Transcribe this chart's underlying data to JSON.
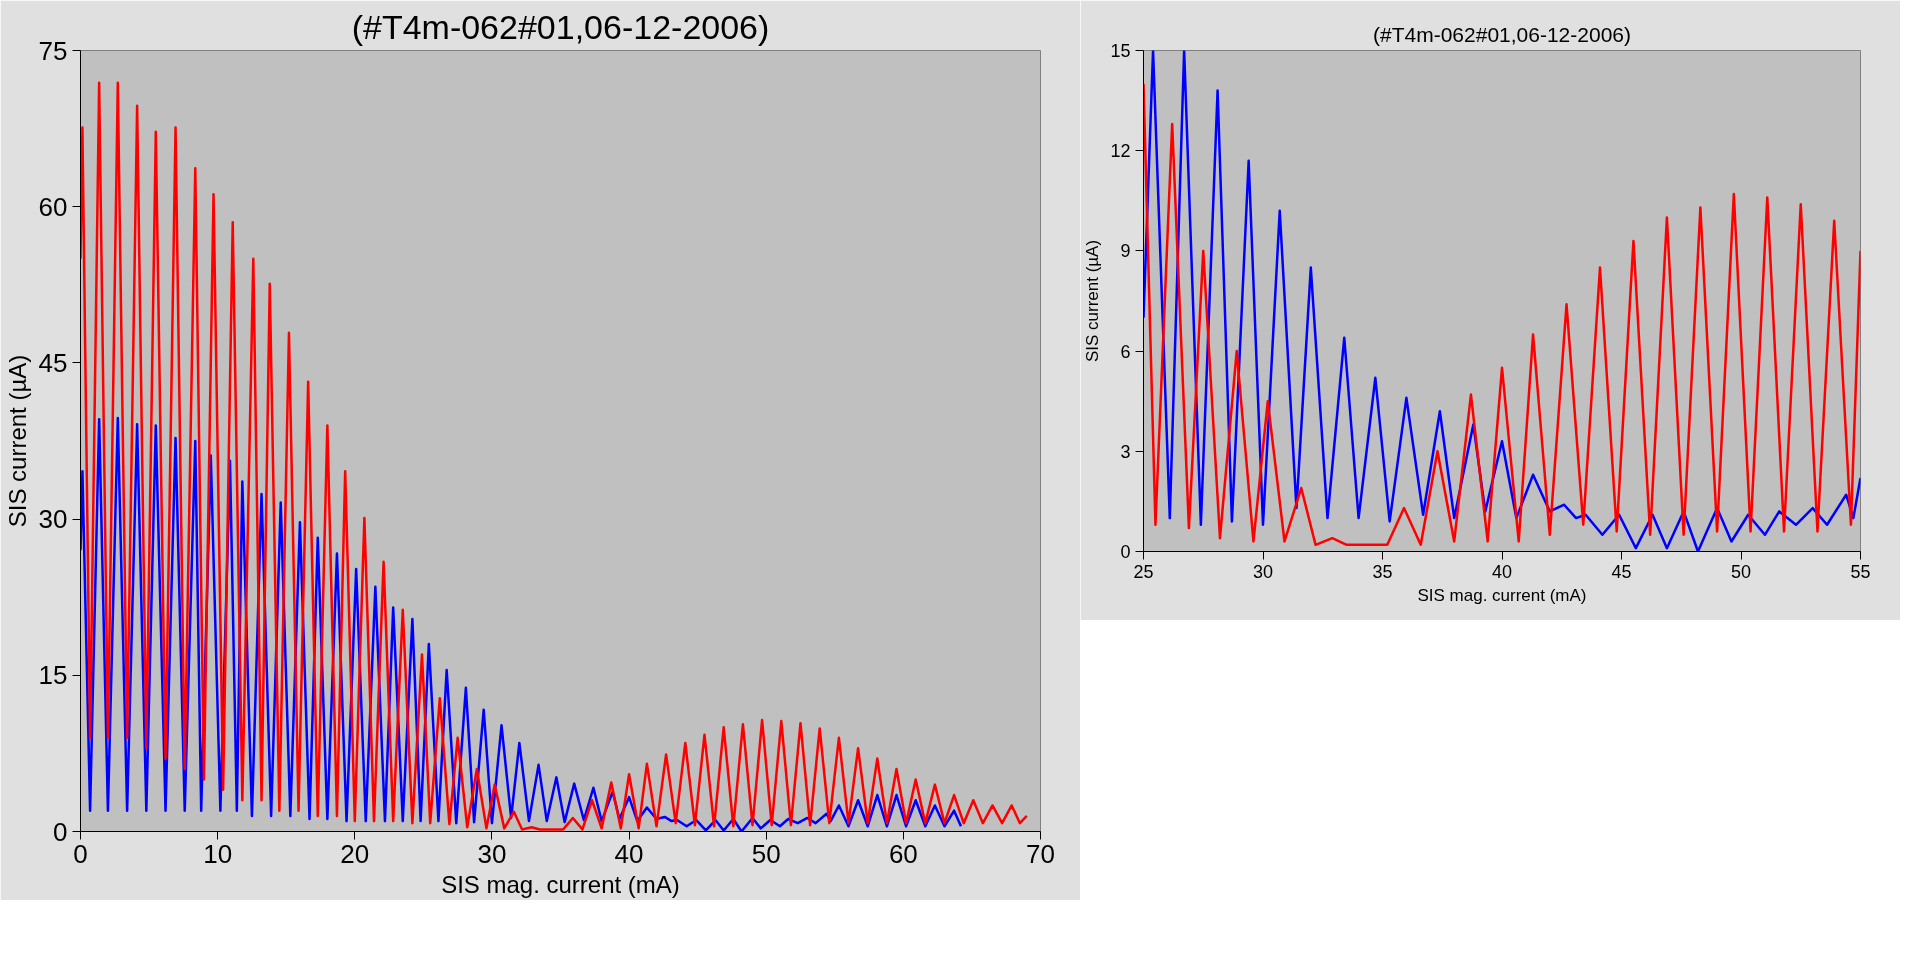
{
  "chart_data": [
    {
      "type": "line",
      "title": "(#T4m-062#01,06-12-2006)",
      "xlabel": "SIS mag. current (mA)",
      "ylabel": "SIS current (µA)",
      "xlim": [
        0,
        70
      ],
      "ylim": [
        0,
        75
      ],
      "xticks": [
        0,
        10,
        20,
        30,
        40,
        50,
        60,
        70
      ],
      "yticks": [
        0,
        15,
        30,
        45,
        60,
        75
      ],
      "grid": false,
      "marker": "none",
      "line_style": "solid",
      "series": [
        {
          "color": "#0000ff",
          "x": [
            0,
            0.14,
            0.7,
            1.36,
            2.0,
            2.72,
            3.4,
            4.13,
            4.8,
            5.49,
            6.2,
            6.93,
            7.6,
            8.37,
            8.8,
            9.5,
            10.2,
            10.9,
            11.4,
            11.8,
            12.5,
            13.2,
            13.9,
            14.6,
            15.3,
            16.0,
            16.7,
            17.3,
            18.0,
            18.7,
            19.4,
            20.1,
            20.8,
            21.5,
            22.2,
            22.8,
            23.5,
            24.2,
            24.8,
            25.4,
            26.1,
            26.7,
            27.4,
            28.1,
            28.7,
            29.4,
            30.0,
            30.7,
            31.4,
            32.0,
            32.7,
            33.4,
            34.0,
            34.7,
            35.3,
            36.0,
            36.7,
            37.4,
            38.0,
            38.8,
            39.3,
            40.0,
            40.6,
            41.3,
            42.0,
            42.6,
            43.1,
            43.5,
            44.2,
            44.9,
            45.6,
            46.3,
            46.9,
            47.6,
            48.2,
            49.0,
            49.6,
            50.3,
            51.0,
            51.6,
            52.3,
            53.0,
            53.6,
            54.4,
            54.7,
            55.3,
            56.0,
            56.7,
            57.4,
            58.1,
            58.8,
            59.5,
            60.2,
            60.9,
            61.6,
            62.3,
            63.0,
            63.7,
            64.2
          ],
          "values": [
            27,
            34.6,
            2,
            39.6,
            2,
            39.7,
            2,
            39.1,
            2,
            39,
            2,
            37.8,
            2,
            37.5,
            2,
            36.1,
            2,
            35.6,
            2,
            33.6,
            1.5,
            32.4,
            1.5,
            31.6,
            1.5,
            29.7,
            1.2,
            28.2,
            1.2,
            26.7,
            1.0,
            25.2,
            1.0,
            23.5,
            1.0,
            21.5,
            1.0,
            20.4,
            1.0,
            18,
            1.0,
            15.5,
            0.8,
            13.8,
            0.9,
            11.7,
            0.8,
            10.2,
            1.3,
            8.5,
            1.0,
            6.4,
            1.0,
            5.2,
            0.9,
            4.6,
            1.1,
            4.2,
            1.0,
            3.8,
            1.2,
            3.3,
            1.0,
            2.3,
            1.2,
            1.4,
            1.0,
            1.1,
            0.5,
            1.1,
            0.1,
            1.1,
            0.1,
            1.2,
            0.0,
            1.3,
            0.3,
            1.1,
            0.5,
            1.2,
            0.8,
            1.3,
            0.8,
            1.7,
            1.0,
            2.5,
            0.5,
            3,
            0.5,
            3.5,
            0.5,
            3.5,
            0.5,
            3,
            0.5,
            2.5,
            0.5,
            2,
            0.5
          ]
        },
        {
          "color": "#ff0000",
          "x": [
            0,
            0.14,
            0.7,
            1.36,
            2.0,
            2.72,
            3.4,
            4.13,
            4.8,
            5.49,
            6.2,
            6.93,
            7.6,
            8.37,
            9.0,
            9.7,
            10.4,
            11.1,
            11.8,
            12.6,
            13.2,
            13.8,
            14.5,
            15.2,
            15.9,
            16.6,
            17.3,
            18.0,
            18.7,
            19.3,
            20.0,
            20.7,
            21.4,
            22.1,
            22.8,
            23.5,
            24.2,
            24.9,
            25.5,
            26.2,
            26.9,
            27.5,
            28.2,
            28.9,
            29.6,
            30.2,
            30.9,
            31.6,
            32.2,
            32.9,
            33.5,
            35.2,
            35.9,
            36.6,
            37.3,
            38.0,
            38.7,
            39.4,
            40.0,
            40.7,
            41.3,
            42.0,
            42.7,
            43.4,
            44.1,
            44.8,
            45.5,
            46.2,
            46.9,
            47.6,
            48.3,
            49.0,
            49.7,
            50.4,
            51.1,
            51.8,
            52.5,
            53.2,
            53.9,
            54.6,
            55.3,
            56.0,
            56.7,
            57.4,
            58.1,
            58.8,
            59.5,
            60.2,
            60.9,
            61.6,
            62.3,
            63.0,
            63.7,
            64.4,
            65.1,
            65.8,
            66.5,
            67.2,
            67.9,
            68.5,
            69
          ],
          "values": [
            55,
            67.6,
            9,
            71.9,
            9,
            71.9,
            9,
            69.7,
            8,
            67.2,
            7,
            67.6,
            6,
            63.7,
            5,
            61.2,
            4,
            58.5,
            3,
            55,
            3,
            52.6,
            2,
            47.9,
            2,
            43.2,
            1.5,
            39,
            1.5,
            34.6,
            1,
            30.1,
            1,
            25.9,
            1,
            21.3,
            0.8,
            17,
            0.8,
            12.8,
            0.7,
            9,
            0.4,
            6,
            0.3,
            4.5,
            0.3,
            1.9,
            0.2,
            0.4,
            0.2,
            0.2,
            1.3,
            0.2,
            3,
            0.3,
            4.7,
            0.3,
            5.5,
            0.3,
            6.5,
            0.5,
            7.4,
            0.8,
            8.5,
            0.6,
            9.3,
            0.5,
            10,
            0.5,
            10.3,
            0.6,
            10.7,
            0.6,
            10.6,
            0.6,
            10.4,
            0.6,
            9.9,
            0.8,
            9,
            0.8,
            8,
            0.8,
            7,
            0.8,
            6,
            0.8,
            5,
            0.8,
            4.5,
            0.8,
            3.5,
            0.8,
            3,
            0.8,
            2.5,
            0.8,
            2.5,
            0.8,
            1.5
          ]
        }
      ]
    },
    {
      "type": "line",
      "title": "(#T4m-062#01,06-12-2006)",
      "xlabel": "SIS mag. current (mA)",
      "ylabel": "SIS current (µA)",
      "xlim": [
        25,
        55
      ],
      "ylim": [
        0,
        15
      ],
      "xticks": [
        25,
        30,
        35,
        40,
        45,
        50,
        55
      ],
      "yticks": [
        0,
        3,
        6,
        9,
        12,
        15
      ],
      "grid": false,
      "marker": "none",
      "line_style": "solid",
      "series": [
        {
          "color": "#0000ff",
          "x": [
            25.0,
            25.4,
            26.1,
            26.7,
            27.4,
            28.1,
            28.7,
            29.4,
            30.0,
            30.7,
            31.4,
            32.0,
            32.7,
            33.4,
            34.0,
            34.7,
            35.3,
            36.0,
            36.7,
            37.4,
            38.0,
            38.8,
            39.3,
            40.0,
            40.6,
            41.3,
            42.0,
            42.6,
            43.1,
            43.5,
            44.2,
            44.9,
            45.6,
            46.3,
            46.9,
            47.6,
            48.2,
            49.0,
            49.6,
            50.3,
            51.0,
            51.6,
            52.3,
            53.0,
            53.6,
            54.4,
            54.7,
            55
          ],
          "values": [
            7,
            15,
            1.0,
            15,
            0.8,
            13.8,
            0.9,
            11.7,
            0.8,
            10.2,
            1.3,
            8.5,
            1.0,
            6.4,
            1.0,
            5.2,
            0.9,
            4.6,
            1.1,
            4.2,
            1.0,
            3.8,
            1.2,
            3.3,
            1.0,
            2.3,
            1.2,
            1.4,
            1.0,
            1.1,
            0.5,
            1.1,
            0.1,
            1.1,
            0.1,
            1.2,
            0.0,
            1.3,
            0.3,
            1.1,
            0.5,
            1.2,
            0.8,
            1.3,
            0.8,
            1.7,
            1.0,
            2.2
          ]
        },
        {
          "color": "#ff0000",
          "x": [
            25.0,
            25.5,
            26.2,
            26.9,
            27.5,
            28.2,
            28.9,
            29.6,
            30.2,
            30.9,
            31.6,
            32.2,
            32.9,
            33.5,
            35.2,
            35.9,
            36.6,
            37.3,
            38.0,
            38.7,
            39.4,
            40.0,
            40.7,
            41.3,
            42.0,
            42.7,
            43.4,
            44.1,
            44.8,
            45.5,
            46.2,
            46.9,
            47.6,
            48.3,
            49.0,
            49.7,
            50.4,
            51.1,
            51.8,
            52.5,
            53.2,
            53.9,
            54.6,
            55
          ],
          "values": [
            14,
            0.8,
            12.8,
            0.7,
            9,
            0.4,
            6,
            0.3,
            4.5,
            0.3,
            1.9,
            0.2,
            0.4,
            0.2,
            0.2,
            1.3,
            0.2,
            3,
            0.3,
            4.7,
            0.3,
            5.5,
            0.3,
            6.5,
            0.5,
            7.4,
            0.8,
            8.5,
            0.6,
            9.3,
            0.5,
            10,
            0.5,
            10.3,
            0.6,
            10.7,
            0.6,
            10.6,
            0.6,
            10.4,
            0.6,
            9.9,
            0.8,
            9
          ]
        }
      ]
    }
  ]
}
